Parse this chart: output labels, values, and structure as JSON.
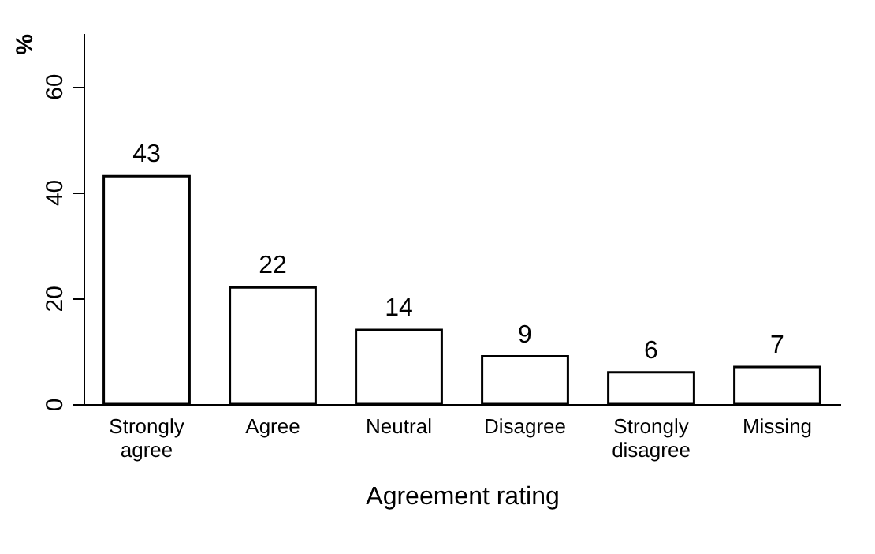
{
  "chart_data": {
    "type": "bar",
    "xlabel": "Agreement rating",
    "ylabel": "%",
    "categories": [
      "Strongly agree",
      "Agree",
      "Neutral",
      "Disagree",
      "Strongly disagree",
      "Missing"
    ],
    "values": [
      43,
      22,
      14,
      9,
      6,
      7
    ],
    "color": "#ffffff",
    "ylim": [
      0,
      70
    ],
    "yticks": [
      0,
      20,
      40,
      60
    ],
    "grid": false,
    "data_labels": true
  }
}
